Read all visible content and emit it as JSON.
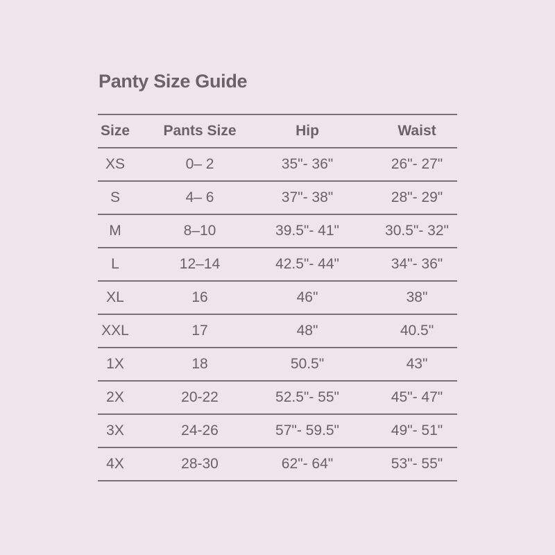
{
  "title": "Panty Size Guide",
  "colors": {
    "background": "#ede5ea",
    "text": "#6b6169",
    "rule": "#7a7078"
  },
  "headers": [
    "Size",
    "Pants Size",
    "Hip",
    "Waist"
  ],
  "rows": [
    [
      "XS",
      "0– 2",
      "35\"- 36\"",
      "26\"- 27\""
    ],
    [
      "S",
      "4– 6",
      "37\"- 38\"",
      "28\"- 29\""
    ],
    [
      "M",
      "8–10",
      "39.5\"- 41\"",
      "30.5\"- 32\""
    ],
    [
      "L",
      "12–14",
      "42.5\"- 44\"",
      "34\"- 36\""
    ],
    [
      "XL",
      "16",
      "46\"",
      "38\""
    ],
    [
      "XXL",
      "17",
      "48\"",
      "40.5\""
    ],
    [
      "1X",
      "18",
      "50.5\"",
      "43\""
    ],
    [
      "2X",
      "20-22",
      "52.5\"- 55\"",
      "45\"- 47\""
    ],
    [
      "3X",
      "24-26",
      "57\"- 59.5\"",
      "49\"- 51\""
    ],
    [
      "4X",
      "28-30",
      "62\"- 64\"",
      "53\"- 55\""
    ]
  ]
}
